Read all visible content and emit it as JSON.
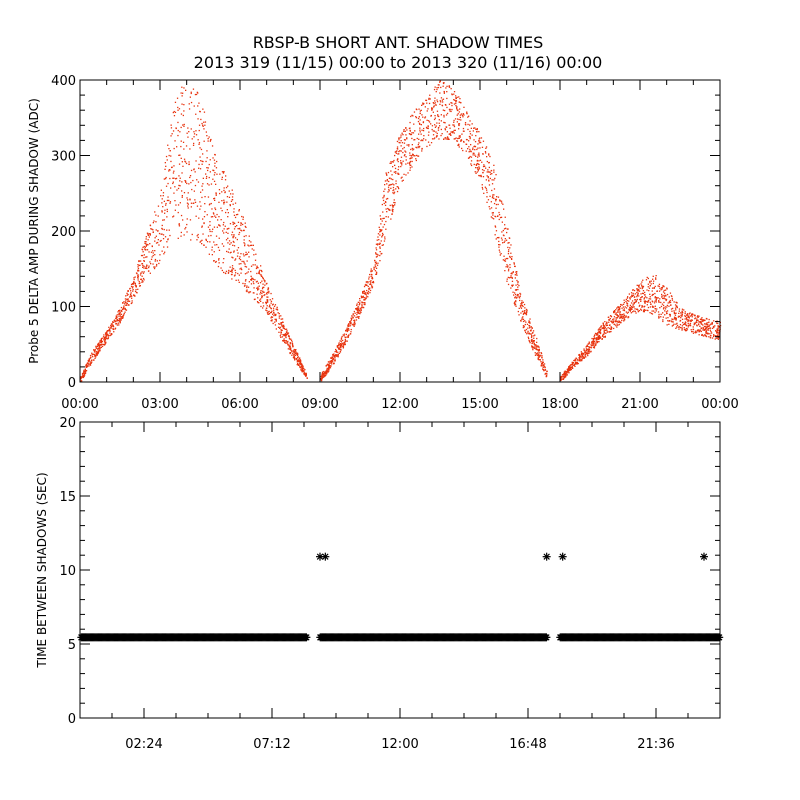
{
  "title": "RBSP-B SHORT ANT. SHADOW TIMES",
  "subtitle": "2013 319 (11/15) 00:00 to 2013 320 (11/16) 00:00",
  "chart_data": [
    {
      "type": "scatter",
      "ylabel": "Probe 5 DELTA AMP DURING SHADOW (ADC)",
      "xlabel": "",
      "x_unit": "hour of day",
      "xlim": [
        0,
        24
      ],
      "ylim": [
        0,
        400
      ],
      "x_tick_labels": [
        "00:00",
        "03:00",
        "06:00",
        "09:00",
        "12:00",
        "15:00",
        "18:00",
        "21:00",
        "00:00"
      ],
      "y_tick_labels": [
        "0",
        "100",
        "200",
        "300",
        "400"
      ],
      "marker_color": "#e8330e",
      "series": [
        {
          "x": [
            0.0,
            0.5,
            1.0,
            1.5,
            2.0,
            2.5,
            3.0,
            3.5,
            4.0,
            4.5,
            5.0,
            5.5,
            6.0,
            6.5,
            7.0,
            7.5,
            8.0,
            8.5
          ],
          "lower": [
            0,
            30,
            55,
            80,
            110,
            140,
            160,
            185,
            190,
            185,
            160,
            140,
            130,
            110,
            90,
            60,
            30,
            5
          ],
          "upper": [
            10,
            45,
            70,
            100,
            140,
            200,
            250,
            380,
            400,
            380,
            310,
            270,
            230,
            180,
            130,
            90,
            50,
            10
          ]
        },
        {
          "x": [
            9.0,
            9.5,
            10.0,
            10.5,
            11.0,
            11.5,
            12.0,
            12.5,
            13.0,
            13.5,
            14.0,
            14.5,
            15.0,
            15.5,
            16.0,
            16.5,
            17.0,
            17.5
          ],
          "lower": [
            0,
            25,
            55,
            90,
            130,
            200,
            260,
            290,
            310,
            320,
            320,
            300,
            260,
            200,
            130,
            80,
            40,
            5
          ],
          "upper": [
            10,
            40,
            75,
            115,
            160,
            290,
            330,
            360,
            380,
            400,
            390,
            360,
            330,
            290,
            210,
            120,
            70,
            15
          ]
        },
        {
          "x": [
            18.0,
            18.5,
            19.0,
            19.5,
            20.0,
            20.5,
            21.0,
            21.5,
            22.0,
            22.5,
            23.0,
            23.5,
            24.0
          ],
          "lower": [
            0,
            20,
            35,
            55,
            70,
            85,
            95,
            90,
            75,
            70,
            65,
            60,
            55
          ],
          "upper": [
            8,
            30,
            50,
            75,
            95,
            115,
            135,
            145,
            125,
            100,
            90,
            85,
            80
          ]
        }
      ]
    },
    {
      "type": "scatter",
      "ylabel": "TIME BETWEEN SHADOWS (SEC)",
      "xlabel": "",
      "x_unit": "hour of day",
      "xlim": [
        0,
        24
      ],
      "ylim": [
        0,
        20
      ],
      "x_ticks": [
        2.4,
        7.2,
        12.0,
        16.8,
        21.6
      ],
      "x_tick_labels": [
        "02:24",
        "07:12",
        "12:00",
        "16:48",
        "21:36"
      ],
      "y_tick_labels": [
        "0",
        "5",
        "10",
        "15",
        "20"
      ],
      "marker_color": "#000000",
      "baseline": {
        "x_range": [
          0.0,
          24.0
        ],
        "y": 5.45,
        "gaps": [
          [
            8.5,
            9.0
          ],
          [
            17.5,
            18.0
          ]
        ]
      },
      "points": [
        {
          "x": 9.0,
          "y": 10.9
        },
        {
          "x": 9.2,
          "y": 10.9
        },
        {
          "x": 17.5,
          "y": 10.9
        },
        {
          "x": 18.1,
          "y": 10.9
        },
        {
          "x": 23.4,
          "y": 10.9
        }
      ]
    }
  ]
}
